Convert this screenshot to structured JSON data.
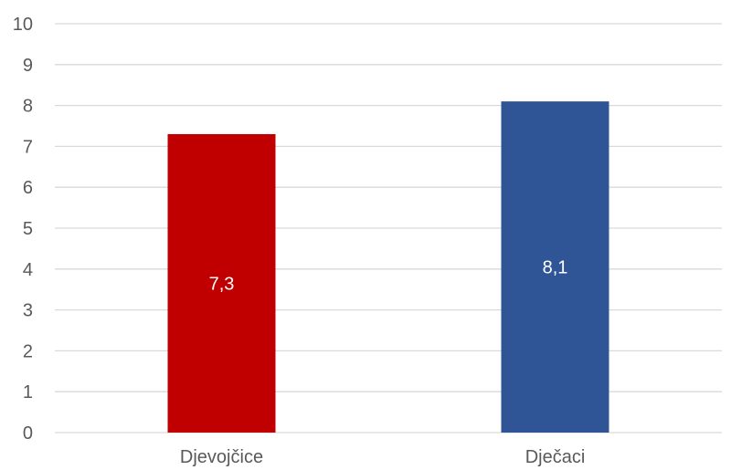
{
  "chart_data": {
    "type": "bar",
    "categories": [
      "Djevojčice",
      "Dječaci"
    ],
    "values": [
      7.3,
      8.1
    ],
    "data_labels": [
      "7,3",
      "8,1"
    ],
    "colors": [
      "#c00000",
      "#2f5597"
    ],
    "ylim": [
      0,
      10
    ],
    "yticks": [
      "0",
      "1",
      "2",
      "3",
      "4",
      "5",
      "6",
      "7",
      "8",
      "9",
      "10"
    ],
    "title": "",
    "xlabel": "",
    "ylabel": "",
    "grid": true,
    "legend": "none"
  }
}
